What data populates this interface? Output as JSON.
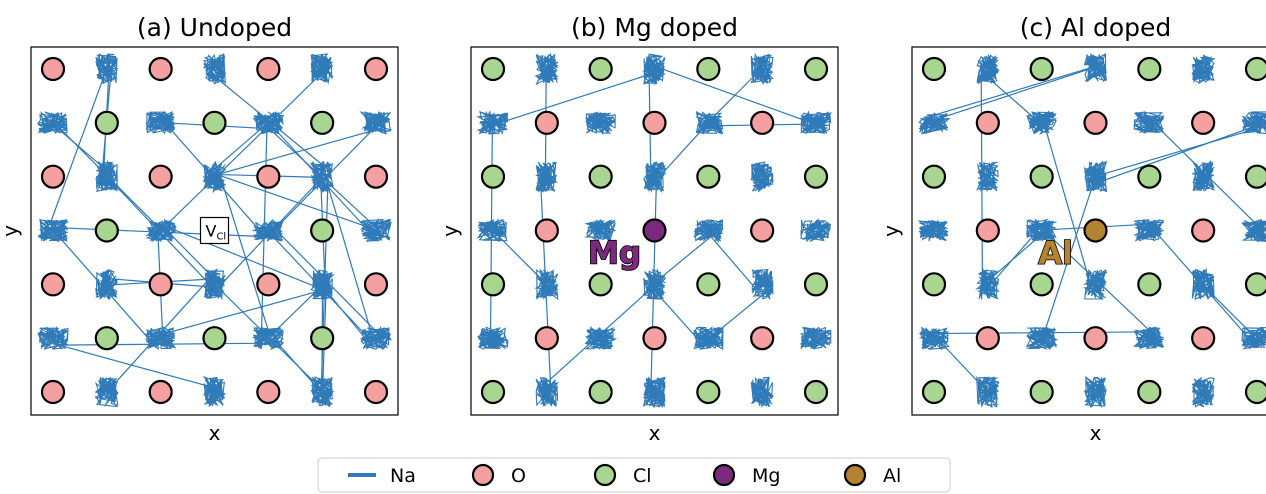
{
  "colors": {
    "na": "#2f7ab8",
    "o": "#f4a0a0",
    "cl": "#a8d590",
    "mg": "#7b2a7e",
    "al": "#b38330",
    "edge": "#000000"
  },
  "chart_data": [
    {
      "type": "scatter",
      "title": "(a) Undoped",
      "xlabel": "x",
      "ylabel": "y",
      "grid": false,
      "o_sites": [
        [
          0,
          0
        ],
        [
          2,
          0
        ],
        [
          4,
          0
        ],
        [
          6,
          0
        ],
        [
          0,
          2
        ],
        [
          2,
          2
        ],
        [
          4,
          2
        ],
        [
          6,
          2
        ],
        [
          0,
          4
        ],
        [
          2,
          4
        ],
        [
          4,
          4
        ],
        [
          6,
          4
        ],
        [
          0,
          6
        ],
        [
          2,
          6
        ],
        [
          4,
          6
        ],
        [
          6,
          6
        ]
      ],
      "cl_sites": [
        [
          1,
          1
        ],
        [
          3,
          1
        ],
        [
          5,
          1
        ],
        [
          1,
          3
        ],
        [
          5,
          3
        ],
        [
          1,
          5
        ],
        [
          3,
          5
        ],
        [
          5,
          5
        ]
      ],
      "na_clusters": [
        [
          1,
          0
        ],
        [
          3,
          0
        ],
        [
          5,
          0
        ],
        [
          0,
          1
        ],
        [
          2,
          1
        ],
        [
          4,
          1
        ],
        [
          6,
          1
        ],
        [
          1,
          2
        ],
        [
          3,
          2
        ],
        [
          5,
          2
        ],
        [
          0,
          3
        ],
        [
          2,
          3
        ],
        [
          4,
          3
        ],
        [
          6,
          3
        ],
        [
          1,
          4
        ],
        [
          3,
          4
        ],
        [
          5,
          4
        ],
        [
          0,
          5
        ],
        [
          2,
          5
        ],
        [
          4,
          5
        ],
        [
          6,
          5
        ],
        [
          1,
          6
        ],
        [
          3,
          6
        ],
        [
          5,
          6
        ]
      ],
      "vacancy": {
        "site": [
          3,
          3
        ],
        "label_main": "V",
        "label_sub": "Cl"
      },
      "dopant": null
    },
    {
      "type": "scatter",
      "title": "(b) Mg doped",
      "xlabel": "x",
      "ylabel": "y",
      "grid": false,
      "o_sites": [
        [
          1,
          1
        ],
        [
          3,
          1
        ],
        [
          5,
          1
        ],
        [
          1,
          3
        ],
        [
          5,
          3
        ],
        [
          1,
          5
        ],
        [
          3,
          5
        ],
        [
          5,
          5
        ]
      ],
      "cl_sites": [
        [
          0,
          0
        ],
        [
          2,
          0
        ],
        [
          4,
          0
        ],
        [
          6,
          0
        ],
        [
          0,
          2
        ],
        [
          2,
          2
        ],
        [
          4,
          2
        ],
        [
          6,
          2
        ],
        [
          0,
          4
        ],
        [
          2,
          4
        ],
        [
          4,
          4
        ],
        [
          6,
          4
        ],
        [
          0,
          6
        ],
        [
          2,
          6
        ],
        [
          4,
          6
        ],
        [
          6,
          6
        ]
      ],
      "na_clusters": [
        [
          1,
          0
        ],
        [
          3,
          0
        ],
        [
          5,
          0
        ],
        [
          0,
          1
        ],
        [
          2,
          1
        ],
        [
          4,
          1
        ],
        [
          6,
          1
        ],
        [
          1,
          2
        ],
        [
          3,
          2
        ],
        [
          5,
          2
        ],
        [
          0,
          3
        ],
        [
          2,
          3
        ],
        [
          4,
          3
        ],
        [
          6,
          3
        ],
        [
          1,
          4
        ],
        [
          3,
          4
        ],
        [
          5,
          4
        ],
        [
          0,
          5
        ],
        [
          2,
          5
        ],
        [
          4,
          5
        ],
        [
          6,
          5
        ],
        [
          1,
          6
        ],
        [
          3,
          6
        ],
        [
          5,
          6
        ]
      ],
      "vacancy": null,
      "dopant": {
        "site": [
          3,
          3
        ],
        "label": "Mg",
        "color": "#7b2a7e"
      }
    },
    {
      "type": "scatter",
      "title": "(c) Al doped",
      "xlabel": "x",
      "ylabel": "y",
      "grid": false,
      "o_sites": [
        [
          1,
          1
        ],
        [
          3,
          1
        ],
        [
          5,
          1
        ],
        [
          1,
          3
        ],
        [
          5,
          3
        ],
        [
          1,
          5
        ],
        [
          3,
          5
        ],
        [
          5,
          5
        ]
      ],
      "cl_sites": [
        [
          0,
          0
        ],
        [
          2,
          0
        ],
        [
          4,
          0
        ],
        [
          6,
          0
        ],
        [
          0,
          2
        ],
        [
          2,
          2
        ],
        [
          4,
          2
        ],
        [
          6,
          2
        ],
        [
          0,
          4
        ],
        [
          2,
          4
        ],
        [
          4,
          4
        ],
        [
          6,
          4
        ],
        [
          0,
          6
        ],
        [
          2,
          6
        ],
        [
          4,
          6
        ],
        [
          6,
          6
        ]
      ],
      "na_clusters": [
        [
          1,
          0
        ],
        [
          3,
          0
        ],
        [
          5,
          0
        ],
        [
          0,
          1
        ],
        [
          2,
          1
        ],
        [
          4,
          1
        ],
        [
          6,
          1
        ],
        [
          1,
          2
        ],
        [
          3,
          2
        ],
        [
          5,
          2
        ],
        [
          0,
          3
        ],
        [
          2,
          3
        ],
        [
          4,
          3
        ],
        [
          6,
          3
        ],
        [
          1,
          4
        ],
        [
          3,
          4
        ],
        [
          5,
          4
        ],
        [
          0,
          5
        ],
        [
          2,
          5
        ],
        [
          4,
          5
        ],
        [
          6,
          5
        ],
        [
          1,
          6
        ],
        [
          3,
          6
        ],
        [
          5,
          6
        ]
      ],
      "vacancy": null,
      "dopant": {
        "site": [
          3,
          3
        ],
        "label": "Al",
        "color": "#b38330"
      }
    }
  ],
  "legend": {
    "placement": "bottom-center",
    "items": [
      {
        "label": "Na",
        "kind": "line",
        "color": "#2f7ab8"
      },
      {
        "label": "O",
        "kind": "marker",
        "color": "#f4a0a0"
      },
      {
        "label": "Cl",
        "kind": "marker",
        "color": "#a8d590"
      },
      {
        "label": "Mg",
        "kind": "marker",
        "color": "#7b2a7e"
      },
      {
        "label": "Al",
        "kind": "marker",
        "color": "#b38330"
      }
    ]
  }
}
